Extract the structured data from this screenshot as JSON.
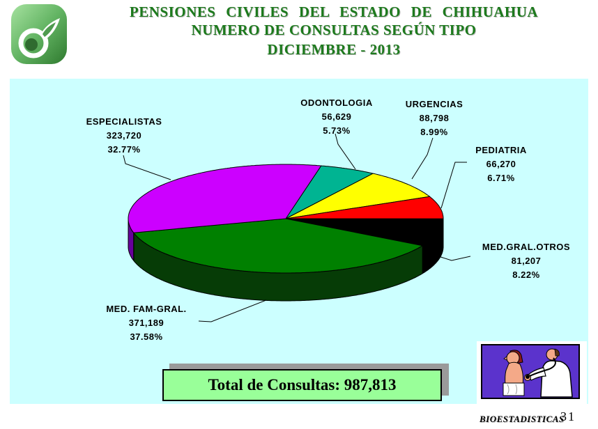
{
  "header": {
    "title_line1": "PENSIONES CIVILES DEL ESTADO DE CHIHUAHUA",
    "title_line2": "NUMERO DE CONSULTAS SEGÚN TIPO",
    "title_line3": "DICIEMBRE - 2013",
    "title_color": "#1d7a1d"
  },
  "chart_panel": {
    "bg": "#ccffff"
  },
  "chart_data": {
    "type": "pie",
    "style": "3d",
    "title": "NUMERO DE CONSULTAS SEGÚN TIPO",
    "period": "DICIEMBRE - 2013",
    "start_angle_deg": 77,
    "direction": "clockwise",
    "total_value": 987813,
    "slices": [
      {
        "name": "ODONTOLOGIA",
        "value": 56629,
        "value_label": "56,629",
        "pct_label": "5.73%",
        "color": "#00b492",
        "side_color": "#005c4a"
      },
      {
        "name": "URGENCIAS",
        "value": 88798,
        "value_label": "88,798",
        "pct_label": "8.99%",
        "color": "#ffff00",
        "side_color": "#8a8a00"
      },
      {
        "name": "PEDIATRIA",
        "value": 66270,
        "value_label": "66,270",
        "pct_label": "6.71%",
        "color": "#ff0000",
        "side_color": "#7a0000"
      },
      {
        "name": "MED.GRAL.OTROS",
        "value": 81207,
        "value_label": "81,207",
        "pct_label": "8.22%",
        "color": "#000000",
        "side_color": "#000000"
      },
      {
        "name": "MED. FAM-GRAL.",
        "value": 371189,
        "value_label": "371,189",
        "pct_label": "37.58%",
        "color": "#008000",
        "side_color": "#063c06"
      },
      {
        "name": "ESPECIALISTAS",
        "value": 323720,
        "value_label": "323,720",
        "pct_label": "32.77%",
        "color": "#cc00ff",
        "side_color": "#660099"
      }
    ]
  },
  "total_box": {
    "label": "Total de Consultas: 987,813",
    "bg": "#99ff99"
  },
  "footer": {
    "left": "BIOESTADISTICAS",
    "page": "31"
  }
}
